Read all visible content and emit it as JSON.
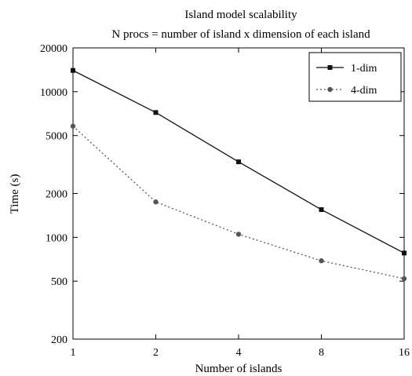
{
  "chart_data": {
    "type": "line",
    "title": "Island model scalability",
    "subtitle": "N procs = number of island x dimension of each island",
    "xlabel": "Number of islands",
    "ylabel": "Time (s)",
    "x_scale": "log2",
    "y_scale": "log",
    "x": [
      1,
      2,
      4,
      8,
      16
    ],
    "x_tick_labels": [
      "1",
      "2",
      "4",
      "8",
      "16"
    ],
    "y_ticks": [
      200,
      500,
      1000,
      2000,
      5000,
      10000,
      20000
    ],
    "y_tick_labels": [
      "200",
      "500",
      "1000",
      "2000",
      "5000",
      "10000",
      "20000"
    ],
    "xlim": [
      1,
      16
    ],
    "ylim": [
      200,
      20000
    ],
    "grid": false,
    "legend_position": "top-right",
    "series": [
      {
        "name": "1-dim",
        "values": [
          14000,
          7200,
          3300,
          1550,
          780
        ],
        "color": "#111111",
        "line_style": "solid",
        "marker": "square"
      },
      {
        "name": "4-dim",
        "values": [
          5800,
          1750,
          1050,
          690,
          520
        ],
        "color": "#555555",
        "line_style": "dotted",
        "marker": "circle"
      }
    ]
  }
}
